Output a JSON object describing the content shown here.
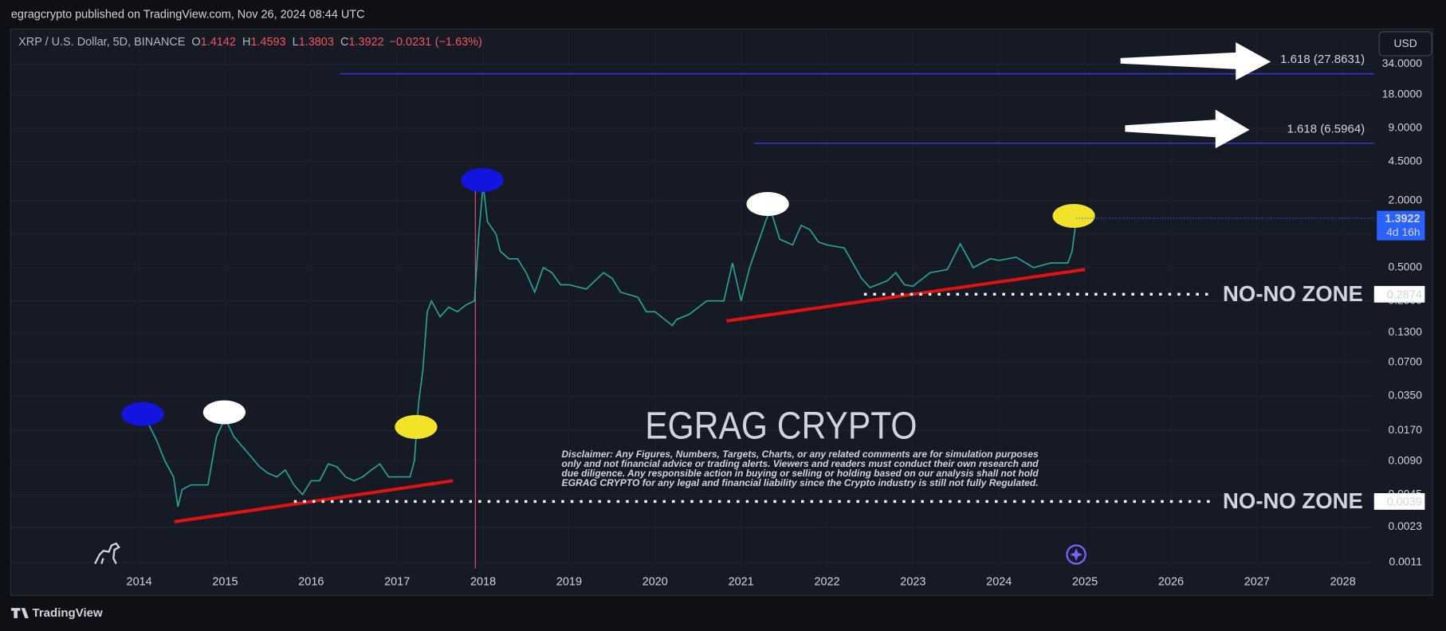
{
  "header": {
    "publisher": "egragcrypto published on TradingView.com, Nov 26, 2024 08:44 UTC",
    "currency": "USD",
    "footer": "TradingView"
  },
  "chart_data": {
    "type": "line",
    "title": "XRP / U.S. Dollar, 5D, BINANCE",
    "ohlc": [
      {
        "label": "O",
        "value": 1.4142
      },
      {
        "label": "H",
        "value": 1.4593
      },
      {
        "label": "L",
        "value": 1.3803
      },
      {
        "label": "C",
        "value": 1.3922
      }
    ],
    "change": {
      "value": -0.0231,
      "label": "−0.0231"
    },
    "change_pct": {
      "value": -1.63,
      "label": "(−1.63%)"
    },
    "color": "#26a69a",
    "x": [
      2014.0,
      2014.1,
      2014.2,
      2014.3,
      2014.4,
      2014.45,
      2014.5,
      2014.6,
      2014.8,
      2014.9,
      2015.0,
      2015.1,
      2015.25,
      2015.4,
      2015.5,
      2015.6,
      2015.7,
      2015.8,
      2015.9,
      2016.0,
      2016.1,
      2016.2,
      2016.3,
      2016.4,
      2016.5,
      2016.6,
      2016.7,
      2016.8,
      2016.9,
      2017.0,
      2017.15,
      2017.2,
      2017.25,
      2017.3,
      2017.35,
      2017.4,
      2017.5,
      2017.6,
      2017.7,
      2017.8,
      2017.9,
      2017.95,
      2018.0,
      2018.05,
      2018.15,
      2018.2,
      2018.3,
      2018.4,
      2018.5,
      2018.6,
      2018.7,
      2018.8,
      2018.9,
      2019.0,
      2019.2,
      2019.4,
      2019.5,
      2019.6,
      2019.8,
      2019.9,
      2020.0,
      2020.2,
      2020.25,
      2020.4,
      2020.6,
      2020.8,
      2020.9,
      2021.0,
      2021.1,
      2021.3,
      2021.35,
      2021.45,
      2021.6,
      2021.7,
      2021.8,
      2021.9,
      2022.0,
      2022.2,
      2022.4,
      2022.5,
      2022.7,
      2022.8,
      2022.9,
      2023.0,
      2023.2,
      2023.4,
      2023.55,
      2023.7,
      2023.9,
      2024.0,
      2024.2,
      2024.4,
      2024.6,
      2024.8,
      2024.85,
      2024.9
    ],
    "values": [
      0.025,
      0.02,
      0.014,
      0.009,
      0.0065,
      0.0035,
      0.005,
      0.0055,
      0.0055,
      0.015,
      0.022,
      0.015,
      0.011,
      0.008,
      0.007,
      0.0065,
      0.0075,
      0.0055,
      0.0045,
      0.006,
      0.006,
      0.0085,
      0.008,
      0.0065,
      0.006,
      0.0065,
      0.0075,
      0.0085,
      0.0065,
      0.0065,
      0.0065,
      0.009,
      0.03,
      0.06,
      0.2,
      0.25,
      0.18,
      0.22,
      0.2,
      0.23,
      0.25,
      1.0,
      2.8,
      1.3,
      1.0,
      0.7,
      0.6,
      0.6,
      0.45,
      0.3,
      0.5,
      0.45,
      0.35,
      0.35,
      0.32,
      0.45,
      0.4,
      0.3,
      0.27,
      0.2,
      0.2,
      0.15,
      0.17,
      0.19,
      0.25,
      0.25,
      0.55,
      0.25,
      0.5,
      1.4,
      1.6,
      0.9,
      0.8,
      1.2,
      1.1,
      0.85,
      0.8,
      0.75,
      0.4,
      0.33,
      0.38,
      0.45,
      0.35,
      0.34,
      0.45,
      0.48,
      0.82,
      0.5,
      0.6,
      0.58,
      0.62,
      0.5,
      0.55,
      0.55,
      0.7,
      1.3922
    ],
    "xlim": [
      2012.51,
      2028.33
    ],
    "xticks": [
      2014,
      2015,
      2016,
      2017,
      2018,
      2019,
      2020,
      2021,
      2022,
      2023,
      2024,
      2025,
      2026,
      2027,
      2028
    ],
    "ylim": [
      0.00057,
      66
    ],
    "log_scale": true,
    "grid": true,
    "yticks": [
      {
        "value": 0.0011,
        "label": "0.0011"
      },
      {
        "value": 0.0023,
        "label": "0.0023"
      },
      {
        "value": 0.0045,
        "label": "0.0045"
      },
      {
        "value": 0.009,
        "label": "0.0090"
      },
      {
        "value": 0.017,
        "label": "0.0170"
      },
      {
        "value": 0.035,
        "label": "0.0350"
      },
      {
        "value": 0.07,
        "label": "0.0700"
      },
      {
        "value": 0.13,
        "label": "0.1300"
      },
      {
        "value": 0.25,
        "label": "0.2500"
      },
      {
        "value": 0.5,
        "label": "0.5000"
      },
      {
        "value": 1,
        "label": "1.0000"
      },
      {
        "value": 2,
        "label": "2.0000"
      },
      {
        "value": 4.5,
        "label": "4.5000"
      },
      {
        "value": 9,
        "label": "9.0000"
      },
      {
        "value": 18,
        "label": "18.0000"
      },
      {
        "value": 34,
        "label": "34.0000"
      }
    ],
    "last_price": {
      "value": 1.3922,
      "countdown": "4d 16h",
      "color": "#2962ff"
    },
    "fib_levels": [
      {
        "label": "1.618 (27.8631)",
        "value": 27.8631,
        "x_start": 2016.33,
        "color": "#3535e8"
      },
      {
        "label": "1.618 (6.5964)",
        "value": 6.5964,
        "x_start": 2021.15,
        "color": "#3535e8"
      }
    ],
    "zones": [
      {
        "label": "NO-NO ZONE",
        "value": 0.2874,
        "x_start": 2022.43
      },
      {
        "label": "NO-NO ZONE",
        "value": 0.0039,
        "x_start": 2015.8
      }
    ],
    "trend_color": "#e31212",
    "trend_lines": [
      {
        "x": [
          2014.41,
          2017.65
        ],
        "values": [
          0.00256,
          0.006
        ]
      },
      {
        "x": [
          2020.83,
          2025.0
        ],
        "values": [
          0.165,
          0.48
        ]
      }
    ],
    "markers": [
      {
        "x": 2014.04,
        "value": 0.0239,
        "color": "#1414e0"
      },
      {
        "x": 2014.99,
        "value": 0.0248,
        "color": "#ffffff"
      },
      {
        "x": 2017.22,
        "value": 0.0183,
        "color": "#f2e22a"
      },
      {
        "x": 2017.99,
        "value": 3.07,
        "color": "#1414e0"
      },
      {
        "x": 2021.31,
        "value": 1.87,
        "color": "#ffffff"
      },
      {
        "x": 2024.87,
        "value": 1.46,
        "color": "#f2e22a"
      }
    ],
    "vline": {
      "x": 2017.91,
      "color": "#e0507a"
    },
    "watermark": "EGRAG CRYPTO",
    "disclaimer": [
      "Disclaimer: Any Figures, Numbers, Targets, Charts, or any related comments are for simulation purposes",
      "only and not financial advice or trading alerts. Viewers and readers must conduct their own research and",
      "due diligence. Any responsible action in buying or selling or holding based on our analysis shall not hold",
      "EGRAG CRYPTO for any legal and financial liability since the Crypto industry is still not fully Regulated."
    ]
  }
}
